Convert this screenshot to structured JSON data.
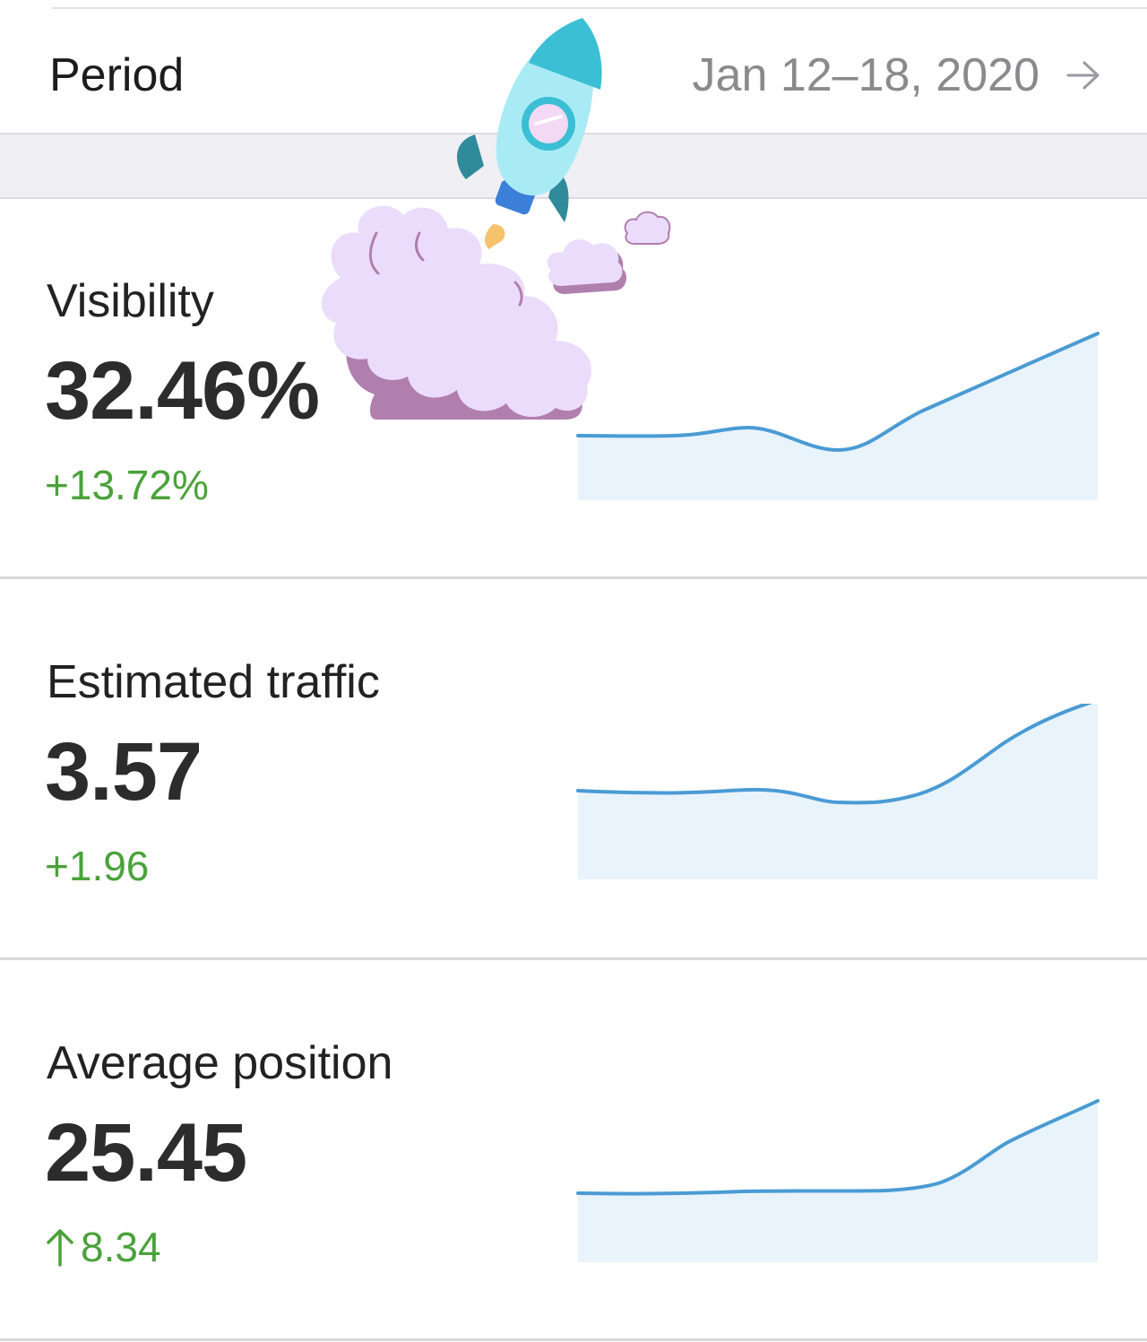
{
  "period": {
    "label": "Period",
    "value": "Jan 12–18, 2020",
    "arrow_icon": "arrow-right-icon"
  },
  "metrics": [
    {
      "title": "Visibility",
      "value": "32.46%",
      "change": "+13.72%",
      "change_icon": null,
      "change_color": "#4aa23a"
    },
    {
      "title": "Estimated traffic",
      "value": "3.57",
      "change": "+1.96",
      "change_icon": null,
      "change_color": "#4aa23a"
    },
    {
      "title": "Average position",
      "value": "25.45",
      "change": "8.34",
      "change_icon": "arrow-up-icon",
      "change_color": "#4aa23a"
    }
  ],
  "colors": {
    "line": "#4a9bd4",
    "fill": "#e9f3fc",
    "positive": "#4aa23a",
    "muted_text": "#8a8a8e"
  },
  "decoration": {
    "icon": "rocket-launch-icon"
  }
}
